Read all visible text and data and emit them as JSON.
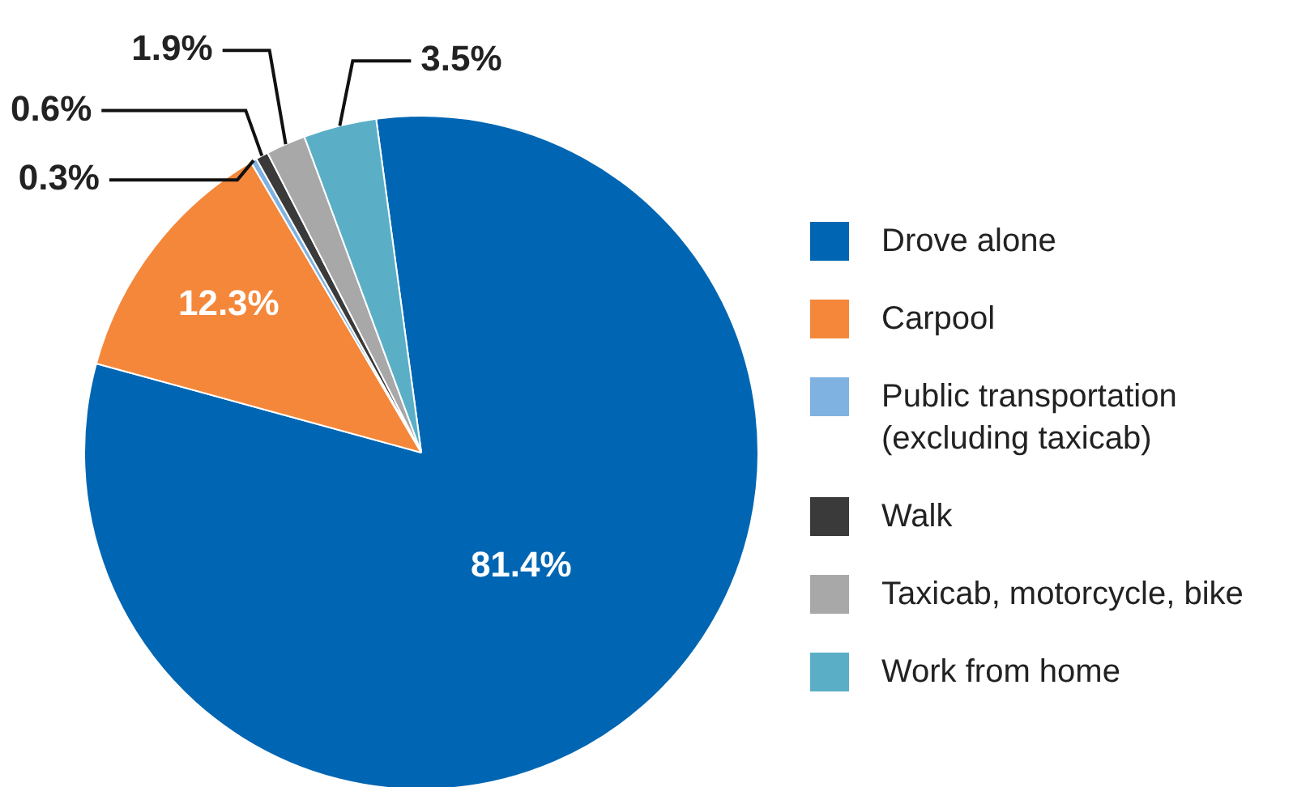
{
  "chart_data": {
    "type": "pie",
    "categories": [
      "Drove alone",
      "Carpool",
      "Public transportation (excluding taxicab)",
      "Walk",
      "Taxicab, motorcycle, bike",
      "Work from home"
    ],
    "values": [
      81.4,
      12.3,
      0.3,
      0.6,
      1.9,
      3.5
    ],
    "colors": [
      "#0066b3",
      "#f5873a",
      "#7fb2e0",
      "#3a3a3a",
      "#a8a8a8",
      "#5aafc7"
    ],
    "value_labels": [
      "81.4%",
      "12.3%",
      "0.3%",
      "0.6%",
      "1.9%",
      "3.5%"
    ],
    "legend": "right"
  }
}
